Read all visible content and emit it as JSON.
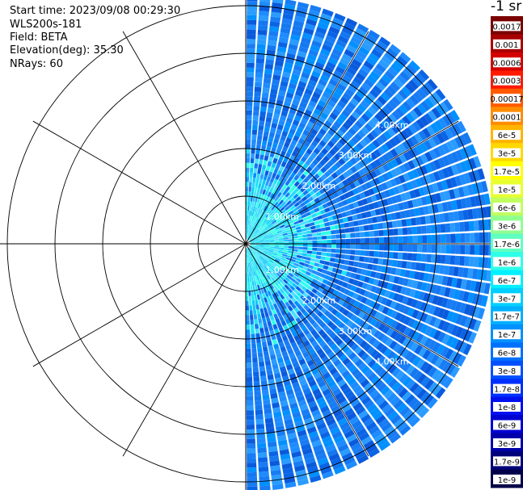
{
  "header": {
    "start_time": "Start time: 2023/09/08 00:29:30",
    "instrument": "WLS200s-181",
    "field": "Field: BETA",
    "elevation": "Elevation(deg): 35.30",
    "nrays": "NRays: 60"
  },
  "colorbar": {
    "title": "-1 sr",
    "tick_labels": [
      "0.0017",
      "0.001",
      "0.0006",
      "0.0003",
      "0.00017",
      "0.0001",
      "6e-5",
      "3e-5",
      "1.7e-5",
      "1e-5",
      "6e-6",
      "3e-6",
      "1.7e-6",
      "1e-6",
      "6e-7",
      "3e-7",
      "1.7e-7",
      "1e-7",
      "6e-8",
      "3e-8",
      "1.7e-8",
      "1e-8",
      "6e-9",
      "3e-9",
      "1.7e-9",
      "1e-9"
    ],
    "colors": [
      "#7a0000",
      "#a80000",
      "#d40000",
      "#ff1a00",
      "#ff5a00",
      "#ff8c00",
      "#ffb400",
      "#ffd800",
      "#ffff00",
      "#e8ff30",
      "#c0ff60",
      "#90ff90",
      "#60ffc0",
      "#30ffe8",
      "#00f0ff",
      "#00d0ff",
      "#00b0ff",
      "#0090ff",
      "#0070ff",
      "#0050ff",
      "#0030ff",
      "#0010f0",
      "#0000d0",
      "#0000a8",
      "#00007a",
      "#00004a"
    ]
  },
  "chart_data": {
    "type": "heatmap",
    "projection": "polar",
    "field": "BETA",
    "range_ring_labels": [
      "1.00km",
      "2.00km",
      "3.00km",
      "4.00km"
    ],
    "range_rings_km": [
      1,
      2,
      3,
      4,
      5
    ],
    "azimuth_spokes_deg": [
      0,
      30,
      60,
      90,
      120,
      150,
      180,
      210,
      240,
      270,
      300,
      330
    ],
    "sector_deg": [
      0,
      180
    ],
    "n_rays": 60,
    "max_range_km": 5.15,
    "value_levels": {
      "near_range_km": [
        0,
        2.2
      ],
      "near_range_level": "1.7e-7",
      "far_range_level": "1e-8"
    }
  }
}
